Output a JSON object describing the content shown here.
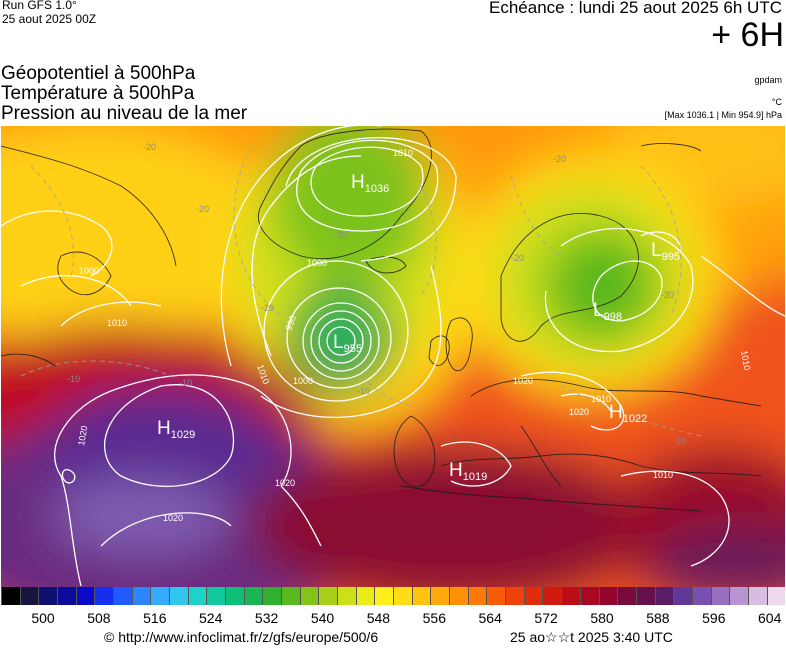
{
  "header": {
    "run": "Run GFS 1.0°",
    "run_date": "25 aout 2025 00Z",
    "echeance": "Echéance : lundi 25 aout 2025 6h UTC",
    "lead": "+ 6H"
  },
  "fields": {
    "line1": "Géopotentiel à 500hPa",
    "line2": "Température à 500hPa",
    "line3": "Pression au niveau de la mer"
  },
  "units": {
    "geopotential": "gpdam",
    "temperature": "°C",
    "pressure_range": "[Max 1036.1 | Min 954.9] hPa"
  },
  "pressure_centers": [
    {
      "type": "H",
      "value": "1036"
    },
    {
      "type": "L",
      "value": "995"
    },
    {
      "type": "L",
      "value": "998"
    },
    {
      "type": "L",
      "value": "955"
    },
    {
      "type": "H",
      "value": "1029"
    },
    {
      "type": "H",
      "value": "1022"
    },
    {
      "type": "H",
      "value": "1019"
    }
  ],
  "isobar_labels": [
    "1010",
    "1000",
    "1010",
    "1020",
    "1020",
    "1020",
    "1010",
    "1020",
    "1000",
    "990",
    "1010",
    "1010",
    "1000",
    "1020",
    "1010"
  ],
  "temperature_labels": [
    "-20",
    "-20",
    "-20",
    "-20",
    "-20",
    "-20",
    "-20",
    "-10",
    "-10",
    "-10",
    "-10"
  ],
  "color_scale": {
    "tick_labels": [
      "500",
      "508",
      "516",
      "524",
      "532",
      "540",
      "548",
      "556",
      "564",
      "572",
      "580",
      "588",
      "596",
      "604"
    ],
    "colors": [
      "#000000",
      "#151540",
      "#101070",
      "#0c0c9a",
      "#0a0ac8",
      "#1430ee",
      "#1f5cff",
      "#2c86ff",
      "#35aaff",
      "#30c6ee",
      "#1ed2c8",
      "#12c89e",
      "#10be76",
      "#1ab450",
      "#30b030",
      "#58b81e",
      "#84c41a",
      "#a8d01a",
      "#cce01a",
      "#eaec18",
      "#fff01c",
      "#ffdc16",
      "#ffc410",
      "#ffaa0c",
      "#ff900a",
      "#ff7808",
      "#f85c08",
      "#ee4208",
      "#e02c0a",
      "#d01a10",
      "#bc0c18",
      "#a80822",
      "#92062e",
      "#7a0a3c",
      "#66104c",
      "#5a1c64",
      "#603898",
      "#7850b0",
      "#9870c0",
      "#b894d0",
      "#d8bce2",
      "#eed8ee"
    ]
  },
  "footer": {
    "url": "© http://www.infoclimat.fr/z/gfs/europe/500/6",
    "generated": "25 ao☆☆t 2025  3:40 UTC"
  }
}
